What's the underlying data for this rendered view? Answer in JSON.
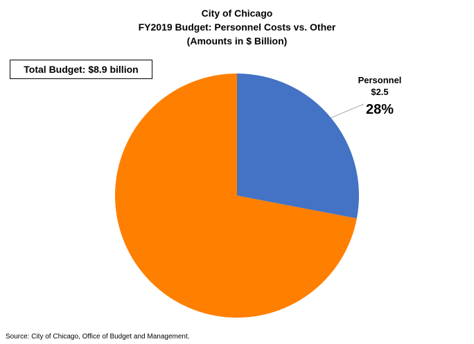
{
  "title_lines": [
    "City of Chicago",
    "FY2019 Budget: Personnel Costs vs. Other",
    "(Amounts in $ Billion)"
  ],
  "total_box": "Total Budget: $8.9 billion",
  "source": "Source: City of Chicago, Office of Budget and Management.",
  "colors": {
    "personnel": "#4472C4",
    "other": "#FF7F00"
  },
  "chart_data": {
    "type": "pie",
    "title": "City of Chicago FY2019 Budget: Personnel Costs vs. Other (Amounts in $ Billion)",
    "total": 8.9,
    "slices": [
      {
        "name": "Personnel",
        "value": 2.5,
        "value_label": "$2.5",
        "percent": 28,
        "percent_label": "28%",
        "color": "#4472C4",
        "labeled": true
      },
      {
        "name": "",
        "value": 6.4,
        "percent": 72,
        "color": "#FF7F00",
        "labeled": false
      }
    ],
    "start_angle": "12 o'clock",
    "direction": "clockwise"
  }
}
